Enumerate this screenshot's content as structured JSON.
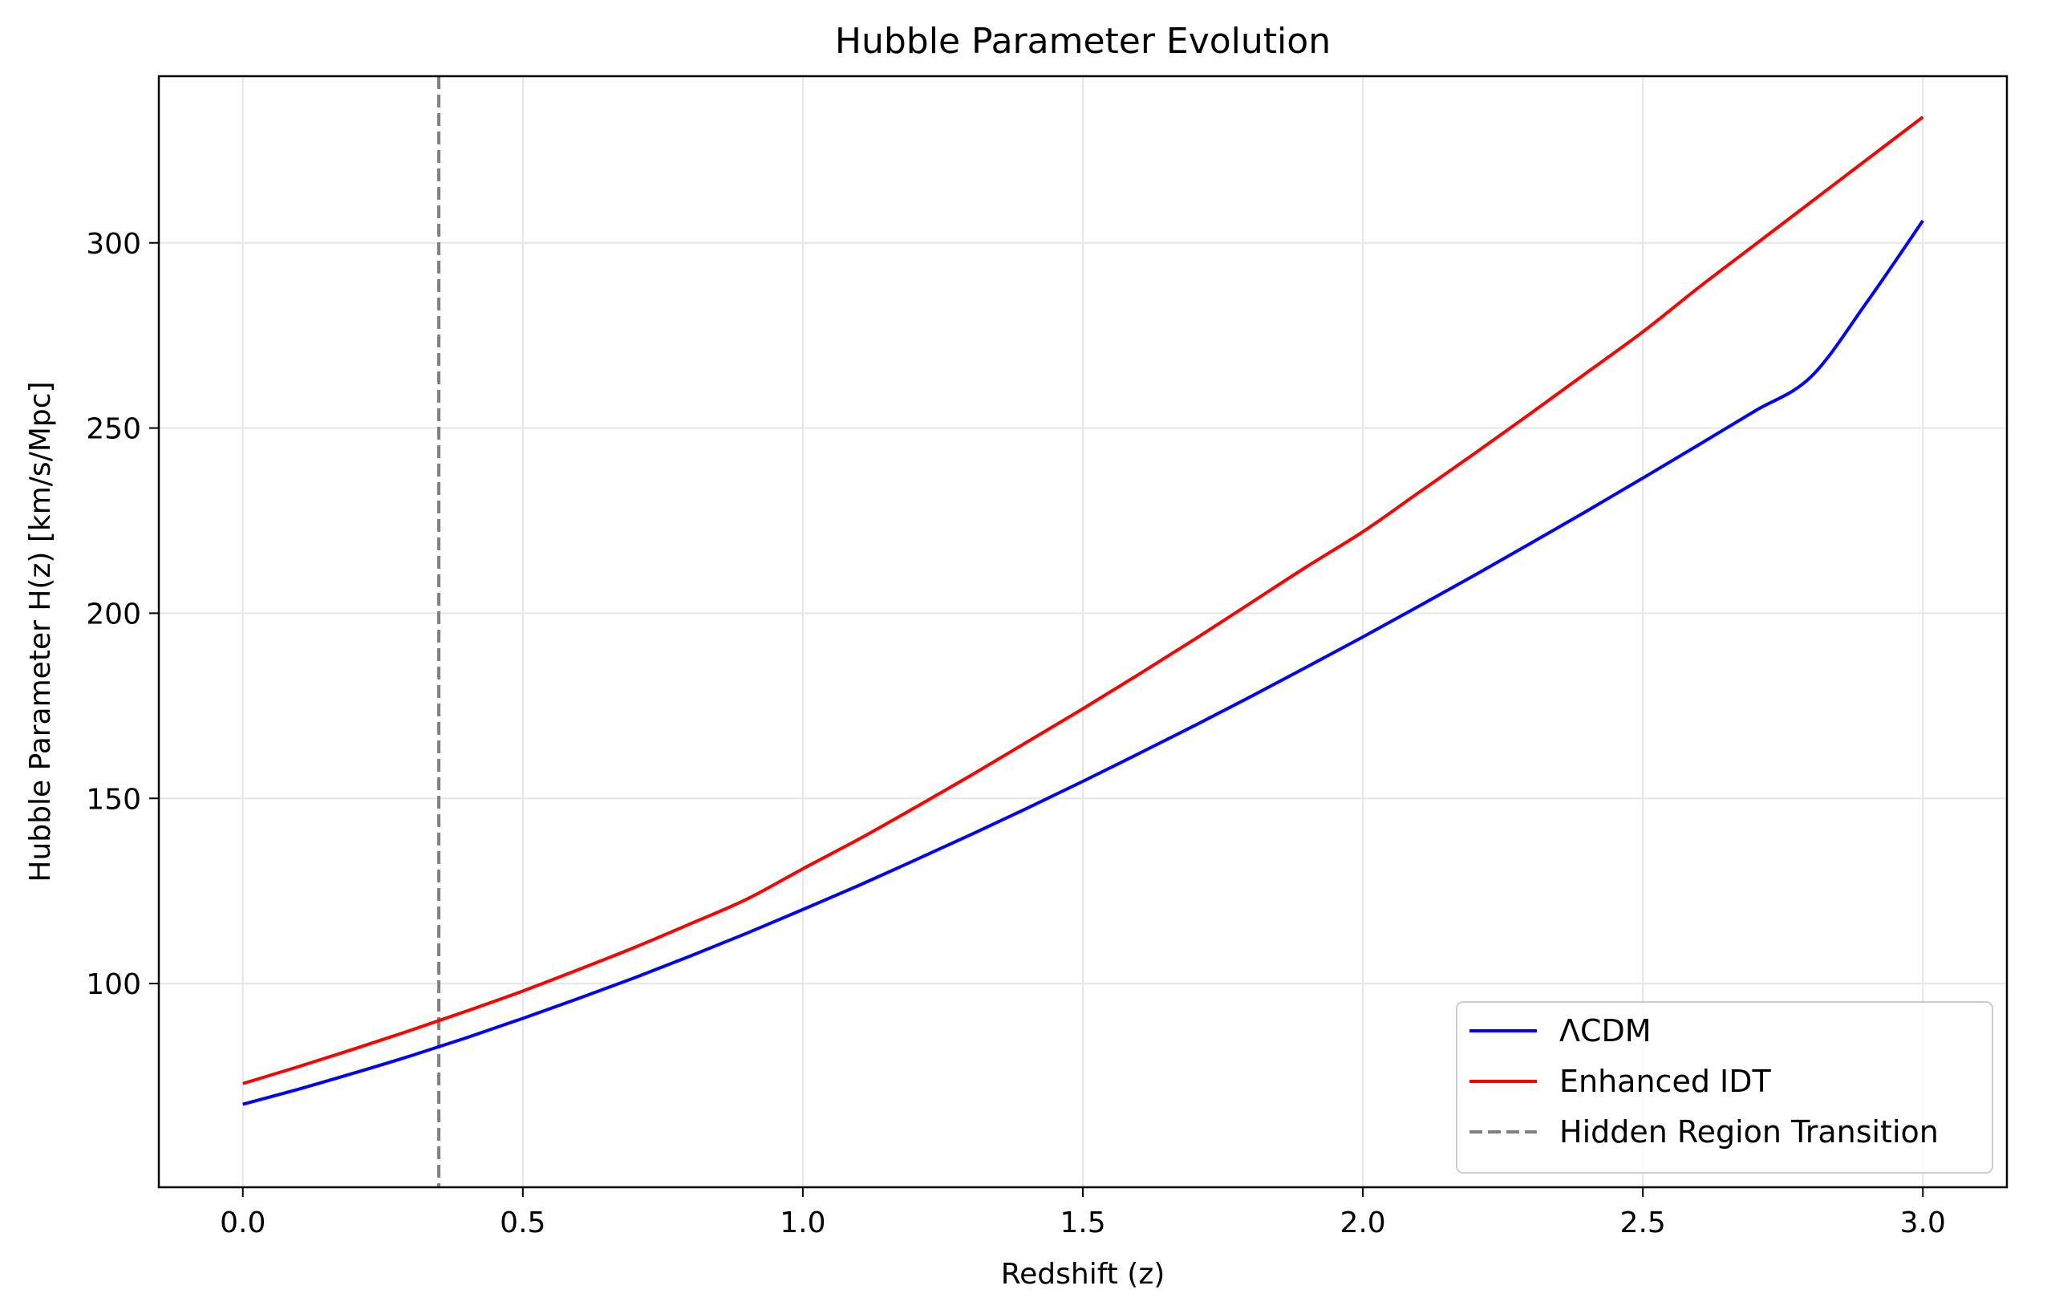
{
  "chart_data": {
    "type": "line",
    "title": "Hubble Parameter Evolution",
    "xlabel": "Redshift (z)",
    "ylabel": "Hubble Parameter H(z) [km/s/Mpc]",
    "xlim": [
      -0.15,
      3.15
    ],
    "ylim": [
      45,
      345
    ],
    "xticks": [
      0.0,
      0.5,
      1.0,
      1.5,
      2.0,
      2.5,
      3.0
    ],
    "xtick_labels": [
      "0.0",
      "0.5",
      "1.0",
      "1.5",
      "2.0",
      "2.5",
      "3.0"
    ],
    "yticks": [
      100,
      150,
      200,
      250,
      300
    ],
    "ytick_labels": [
      "100",
      "150",
      "200",
      "250",
      "300"
    ],
    "grid": true,
    "legend_position": "bottom-right",
    "series": [
      {
        "name": "ΛCDM",
        "color": "#0000ff",
        "style": "solid",
        "x": [
          0.0,
          0.1,
          0.2,
          0.3,
          0.4,
          0.5,
          0.6,
          0.7,
          0.8,
          0.9,
          1.0,
          1.1,
          1.2,
          1.3,
          1.4,
          1.5,
          1.6,
          1.7,
          1.8,
          1.9,
          2.0,
          2.1,
          2.2,
          2.3,
          2.4,
          2.5,
          2.6,
          2.7,
          2.8,
          2.9,
          3.0
        ],
        "y": [
          67.4,
          71.5,
          75.9,
          80.5,
          85.4,
          90.6,
          96.0,
          101.6,
          107.5,
          113.6,
          120.0,
          126.5,
          133.3,
          140.2,
          147.3,
          154.6,
          162.1,
          169.7,
          177.5,
          185.5,
          193.6,
          201.9,
          210.3,
          218.9,
          227.6,
          236.5,
          245.5,
          254.6,
          263.8,
          284.0,
          306.0
        ]
      },
      {
        "name": "Enhanced IDT",
        "color": "#ff0000",
        "style": "solid",
        "x": [
          0.0,
          0.1,
          0.2,
          0.3,
          0.4,
          0.5,
          0.6,
          0.7,
          0.8,
          0.9,
          1.0,
          1.1,
          1.2,
          1.3,
          1.4,
          1.5,
          1.6,
          1.7,
          1.8,
          1.9,
          2.0,
          2.1,
          2.2,
          2.3,
          2.4,
          2.5,
          2.6,
          2.7,
          2.8,
          2.9,
          3.0
        ],
        "y": [
          73.0,
          77.6,
          82.4,
          87.4,
          92.6,
          98.0,
          103.8,
          109.8,
          116.2,
          122.8,
          131.0,
          139.0,
          147.5,
          156.2,
          165.2,
          174.2,
          183.5,
          193.0,
          202.8,
          212.6,
          222.0,
          232.6,
          243.2,
          254.0,
          265.0,
          276.0,
          288.0,
          299.5,
          311.0,
          322.5,
          334.0
        ]
      }
    ],
    "vlines": [
      {
        "name": "Hidden Region Transition",
        "x": 0.35,
        "color": "#808080",
        "style": "dashed"
      }
    ]
  }
}
